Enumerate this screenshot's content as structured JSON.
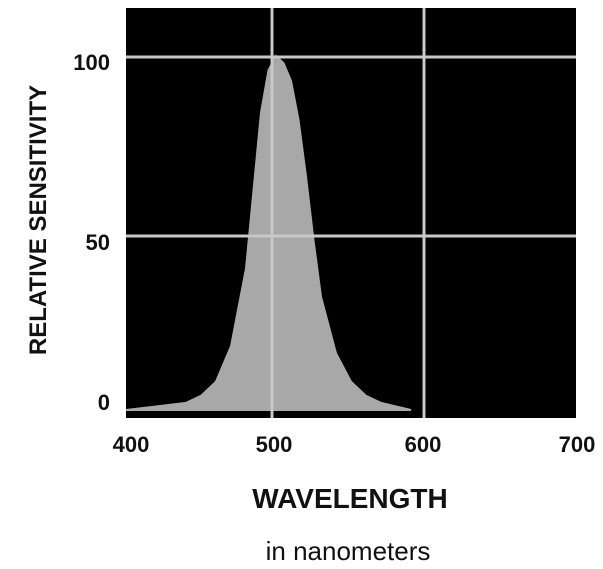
{
  "chart_data": {
    "type": "area",
    "title": "",
    "xlabel": "WAVELENGTH",
    "xlabel_sub": "in nanometers",
    "ylabel": "RELATIVE SENSITIVITY",
    "xlim": [
      400,
      700
    ],
    "ylim": [
      0,
      100
    ],
    "x_ticks": [
      "400",
      "500",
      "600",
      "700"
    ],
    "y_ticks": [
      "0",
      "50",
      "100"
    ],
    "grid": true,
    "colors": {
      "background": "#000000",
      "fill": "#a8a8a8",
      "grid": "#c8c8c8"
    },
    "series": [
      {
        "x": [
          400,
          420,
          440,
          450,
          460,
          470,
          480,
          485,
          490,
          495,
          500,
          505,
          510,
          515,
          520,
          525,
          530,
          540,
          550,
          560,
          570,
          580,
          590
        ],
        "values": [
          0,
          1,
          2,
          4,
          8,
          18,
          40,
          62,
          84,
          96,
          100,
          98,
          93,
          82,
          66,
          48,
          32,
          16,
          8,
          4,
          2,
          1,
          0
        ]
      }
    ]
  }
}
